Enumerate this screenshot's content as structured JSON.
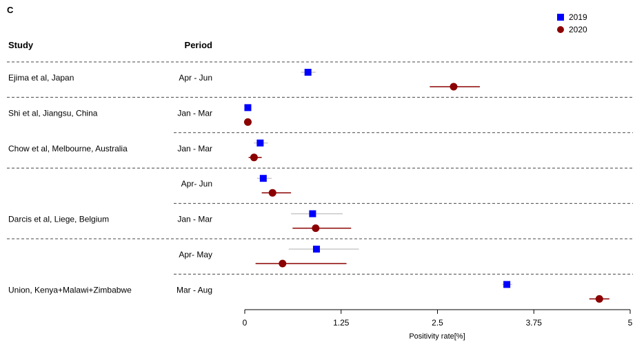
{
  "chart_data": {
    "type": "forest",
    "panel_label": "C",
    "column_headers": {
      "study": "Study",
      "period": "Period"
    },
    "xlabel": "Positivity rate[%]",
    "xlim": [
      0,
      5
    ],
    "x_ticks": [
      "0",
      "1.25",
      "2.5",
      "3.75",
      "5"
    ],
    "x_tick_values": [
      0,
      1.25,
      2.5,
      3.75,
      5
    ],
    "legend": {
      "position": "top-right",
      "entries": [
        "2019",
        "2020"
      ]
    },
    "colors": {
      "2019": "#0000ff",
      "2020": "#8b0000",
      "ci_2019": "#c8c8c8",
      "ci_2020": "#8b0000",
      "separator": "#444444"
    },
    "rows": [
      {
        "study": "Ejima et al, Japan",
        "period": "Apr - Jun",
        "y2019": {
          "est": 0.82,
          "lo": 0.73,
          "hi": 0.92
        },
        "y2020": {
          "est": 2.71,
          "lo": 2.4,
          "hi": 3.05
        }
      },
      {
        "study": "Shi et al, Jiangsu, China",
        "period": "Jan - Mar",
        "y2019": {
          "est": 0.04,
          "lo": 0.02,
          "hi": 0.06
        },
        "y2020": {
          "est": 0.04,
          "lo": 0.02,
          "hi": 0.06
        }
      },
      {
        "study": "Chow et al, Melbourne, Australia",
        "period": "Jan - Mar",
        "y2019": {
          "est": 0.2,
          "lo": 0.12,
          "hi": 0.3
        },
        "y2020": {
          "est": 0.12,
          "lo": 0.05,
          "hi": 0.22
        }
      },
      {
        "study": "",
        "period": "Apr- Jun",
        "y2019": {
          "est": 0.24,
          "lo": 0.16,
          "hi": 0.35
        },
        "y2020": {
          "est": 0.36,
          "lo": 0.22,
          "hi": 0.6
        }
      },
      {
        "study": "Darcis et al, Liege, Belgium",
        "period": "Jan - Mar",
        "y2019": {
          "est": 0.88,
          "lo": 0.6,
          "hi": 1.27
        },
        "y2020": {
          "est": 0.92,
          "lo": 0.62,
          "hi": 1.38
        }
      },
      {
        "study": "",
        "period": "Apr- May",
        "y2019": {
          "est": 0.93,
          "lo": 0.57,
          "hi": 1.48
        },
        "y2020": {
          "est": 0.49,
          "lo": 0.14,
          "hi": 1.32
        }
      },
      {
        "study": "Union, Kenya+Malawi+Zimbabwe",
        "period": "Mar - Aug",
        "y2019": {
          "est": 3.4,
          "lo": 3.34,
          "hi": 3.47
        },
        "y2020": {
          "est": 4.6,
          "lo": 4.47,
          "hi": 4.73
        }
      }
    ],
    "separator_style": [
      "solid",
      "dashed",
      "dashed",
      "dashed",
      "dashed",
      "dashed",
      "dashed"
    ]
  }
}
